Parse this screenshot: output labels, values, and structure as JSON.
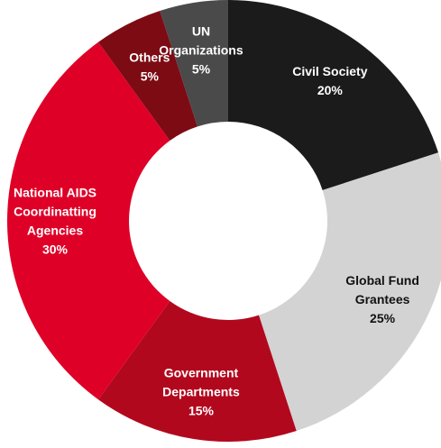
{
  "chart_data": {
    "type": "pie",
    "subtype": "donut",
    "title": "",
    "slices": [
      {
        "label_lines": [
          "Civil Society"
        ],
        "value": 20,
        "value_label": "20%",
        "color": "#1b1b1b",
        "text_color": "#ffffff"
      },
      {
        "label_lines": [
          "Global Fund",
          "Grantees"
        ],
        "value": 25,
        "value_label": "25%",
        "color": "#d3d3d3",
        "text_color": "#111111"
      },
      {
        "label_lines": [
          "Government",
          "Departments"
        ],
        "value": 15,
        "value_label": "15%",
        "color": "#b2081e",
        "text_color": "#ffffff"
      },
      {
        "label_lines": [
          "National AIDS",
          "Coordinatting",
          "Agencies"
        ],
        "value": 30,
        "value_label": "30%",
        "color": "#df0027",
        "text_color": "#ffffff"
      },
      {
        "label_lines": [
          "Others"
        ],
        "value": 5,
        "value_label": "5%",
        "color": "#7d0b13",
        "text_color": "#ffffff"
      },
      {
        "label_lines": [
          "UN",
          "Organizations"
        ],
        "value": 5,
        "value_label": "5%",
        "color": "#4a4a4a",
        "text_color": "#ffffff"
      }
    ]
  }
}
